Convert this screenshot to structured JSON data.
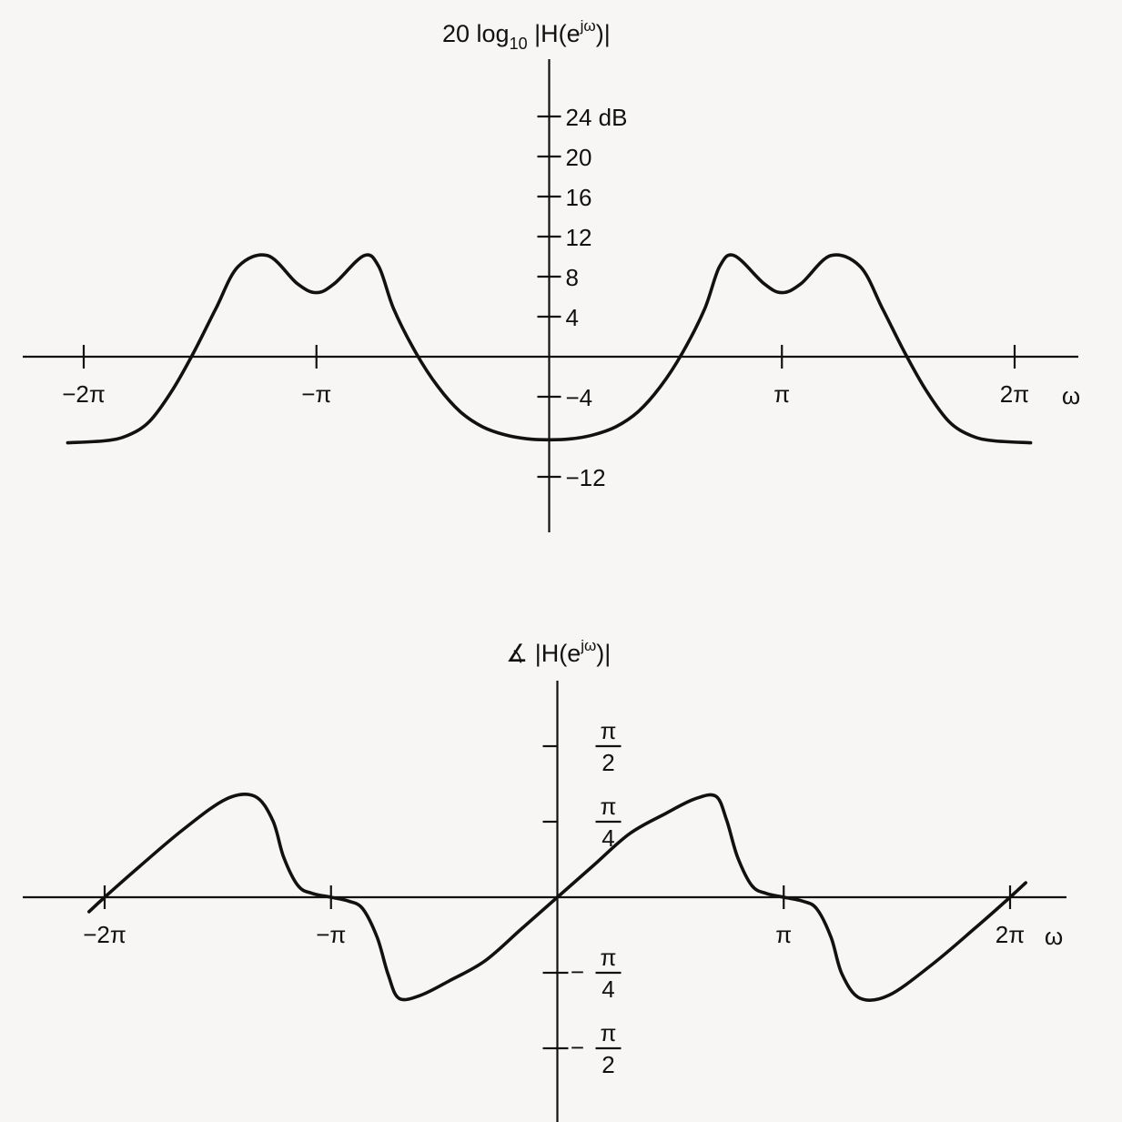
{
  "chart_data": [
    {
      "type": "line",
      "title": "20 log10 |H(e^jω)|",
      "title_parts": {
        "main": "20 log",
        "sub": "10",
        "mid": " |H(e",
        "sup": "jω",
        "end": ")|"
      },
      "xlabel": "ω",
      "x_ticks": [
        {
          "value": -6.2832,
          "label": "−2π"
        },
        {
          "value": -3.1416,
          "label": "−π"
        },
        {
          "value": 3.1416,
          "label": "π"
        },
        {
          "value": 6.2832,
          "label": "2π"
        }
      ],
      "y_ticks": [
        {
          "value": 24,
          "label": "24 dB"
        },
        {
          "value": 20,
          "label": "20"
        },
        {
          "value": 16,
          "label": "16"
        },
        {
          "value": 12,
          "label": "12"
        },
        {
          "value": 8,
          "label": "8"
        },
        {
          "value": 4,
          "label": "4"
        },
        {
          "value": -4,
          "label": "−4"
        },
        {
          "value": -12,
          "label": "−12"
        }
      ],
      "xlim": [
        -7.3,
        7.0
      ],
      "ylim": [
        -17.5,
        30.5
      ],
      "series": [
        {
          "x": [
            -6.5,
            -6.0,
            -5.7,
            -5.4,
            -5.1,
            -4.8,
            -4.5,
            -4.2,
            -3.8,
            -3.4,
            -3.1416,
            -2.9,
            -2.5,
            -2.3,
            -2.1,
            -1.8,
            -1.5,
            -1.2,
            -0.9,
            -0.6,
            -0.3,
            0.0,
            0.3,
            0.6,
            0.9,
            1.2,
            1.5,
            1.8,
            2.1,
            2.3,
            2.5,
            2.9,
            3.1416,
            3.4,
            3.8,
            4.2,
            4.5,
            4.8,
            5.1,
            5.4,
            5.7,
            6.0,
            6.5
          ],
          "values": [
            -8.6,
            -8.4,
            -7.9,
            -6.5,
            -3.5,
            0.4,
            4.8,
            9.0,
            10.1,
            7.3,
            6.4,
            7.3,
            10.1,
            9.0,
            4.8,
            0.4,
            -3.0,
            -5.5,
            -7.0,
            -7.8,
            -8.2,
            -8.3,
            -8.2,
            -7.8,
            -7.0,
            -5.5,
            -3.0,
            0.4,
            4.8,
            9.0,
            10.1,
            7.3,
            6.4,
            7.3,
            10.1,
            9.0,
            4.8,
            0.4,
            -3.5,
            -6.5,
            -7.9,
            -8.4,
            -8.6
          ]
        }
      ]
    },
    {
      "type": "line",
      "title": "∡ |H(e^jω)|",
      "title_parts": {
        "main": "∡ |H(e",
        "sup": "jω",
        "end": ")|"
      },
      "xlabel": "ω",
      "x_ticks": [
        {
          "value": -6.2832,
          "label": "−2π"
        },
        {
          "value": -3.1416,
          "label": "−π"
        },
        {
          "value": 3.1416,
          "label": "π"
        },
        {
          "value": 6.2832,
          "label": "2π"
        }
      ],
      "y_ticks": [
        {
          "value": 1.5708,
          "num": "π",
          "den": "2",
          "sign": ""
        },
        {
          "value": 0.7854,
          "num": "π",
          "den": "4",
          "sign": ""
        },
        {
          "value": -0.7854,
          "num": "π",
          "den": "4",
          "sign": "−"
        },
        {
          "value": -1.5708,
          "num": "π",
          "den": "2",
          "sign": "−"
        }
      ],
      "xlim": [
        -7.3,
        7.0
      ],
      "ylim": [
        -2.16,
        2.12
      ],
      "series": [
        {
          "x": [
            -6.5,
            -6.2832,
            -5.8,
            -5.2,
            -4.6,
            -4.2,
            -3.95,
            -3.8,
            -3.6,
            -3.4,
            -3.1416,
            -2.9,
            -2.7,
            -2.5,
            -2.35,
            -2.2,
            -1.9,
            -1.5,
            -1.0,
            -0.5,
            0.0,
            0.5,
            1.0,
            1.5,
            1.9,
            2.2,
            2.35,
            2.5,
            2.7,
            2.9,
            3.1416,
            3.4,
            3.6,
            3.8,
            3.95,
            4.2,
            4.6,
            5.2,
            5.8,
            6.2832,
            6.5
          ],
          "values": [
            -0.15,
            0.0,
            0.32,
            0.7,
            1.02,
            1.05,
            0.8,
            0.42,
            0.12,
            0.04,
            0.0,
            -0.04,
            -0.12,
            -0.42,
            -0.8,
            -1.05,
            -1.02,
            -0.87,
            -0.66,
            -0.33,
            0.0,
            0.33,
            0.66,
            0.87,
            1.02,
            1.05,
            0.8,
            0.42,
            0.12,
            0.04,
            0.0,
            -0.04,
            -0.12,
            -0.42,
            -0.8,
            -1.05,
            -1.02,
            -0.7,
            -0.32,
            0.0,
            0.15
          ]
        }
      ]
    }
  ]
}
